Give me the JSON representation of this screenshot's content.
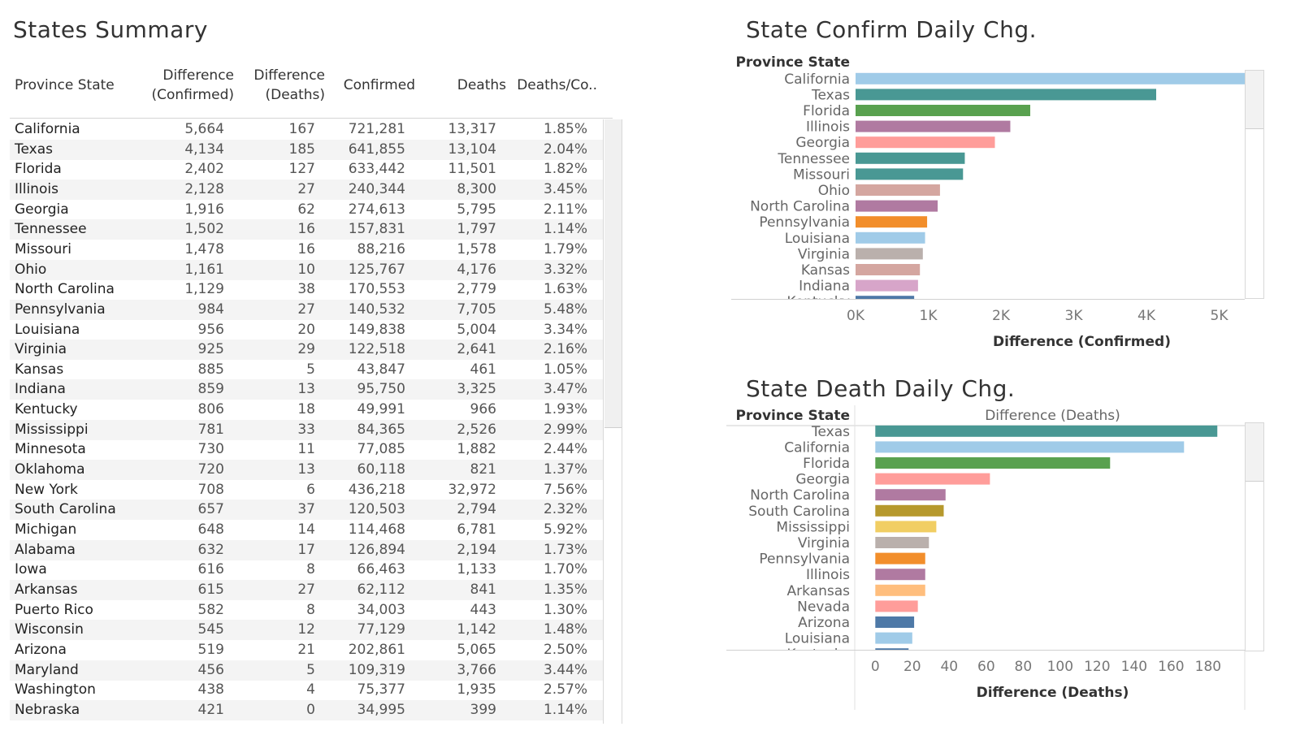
{
  "summary": {
    "title": "States Summary",
    "columns": {
      "state": "Province State",
      "diff_confirmed": [
        "Difference",
        "(Confirmed)"
      ],
      "diff_deaths": [
        "Difference",
        "(Deaths)"
      ],
      "confirmed": "Confirmed",
      "deaths": "Deaths",
      "ratio": "Deaths/Co.."
    },
    "rows": [
      {
        "state": "California",
        "dc": "5,664",
        "dd": "167",
        "c": "721,281",
        "d": "13,317",
        "r": "1.85%"
      },
      {
        "state": "Texas",
        "dc": "4,134",
        "dd": "185",
        "c": "641,855",
        "d": "13,104",
        "r": "2.04%"
      },
      {
        "state": "Florida",
        "dc": "2,402",
        "dd": "127",
        "c": "633,442",
        "d": "11,501",
        "r": "1.82%"
      },
      {
        "state": "Illinois",
        "dc": "2,128",
        "dd": "27",
        "c": "240,344",
        "d": "8,300",
        "r": "3.45%"
      },
      {
        "state": "Georgia",
        "dc": "1,916",
        "dd": "62",
        "c": "274,613",
        "d": "5,795",
        "r": "2.11%"
      },
      {
        "state": "Tennessee",
        "dc": "1,502",
        "dd": "16",
        "c": "157,831",
        "d": "1,797",
        "r": "1.14%"
      },
      {
        "state": "Missouri",
        "dc": "1,478",
        "dd": "16",
        "c": "88,216",
        "d": "1,578",
        "r": "1.79%"
      },
      {
        "state": "Ohio",
        "dc": "1,161",
        "dd": "10",
        "c": "125,767",
        "d": "4,176",
        "r": "3.32%"
      },
      {
        "state": "North Carolina",
        "dc": "1,129",
        "dd": "38",
        "c": "170,553",
        "d": "2,779",
        "r": "1.63%"
      },
      {
        "state": "Pennsylvania",
        "dc": "984",
        "dd": "27",
        "c": "140,532",
        "d": "7,705",
        "r": "5.48%"
      },
      {
        "state": "Louisiana",
        "dc": "956",
        "dd": "20",
        "c": "149,838",
        "d": "5,004",
        "r": "3.34%"
      },
      {
        "state": "Virginia",
        "dc": "925",
        "dd": "29",
        "c": "122,518",
        "d": "2,641",
        "r": "2.16%"
      },
      {
        "state": "Kansas",
        "dc": "885",
        "dd": "5",
        "c": "43,847",
        "d": "461",
        "r": "1.05%"
      },
      {
        "state": "Indiana",
        "dc": "859",
        "dd": "13",
        "c": "95,750",
        "d": "3,325",
        "r": "3.47%"
      },
      {
        "state": "Kentucky",
        "dc": "806",
        "dd": "18",
        "c": "49,991",
        "d": "966",
        "r": "1.93%"
      },
      {
        "state": "Mississippi",
        "dc": "781",
        "dd": "33",
        "c": "84,365",
        "d": "2,526",
        "r": "2.99%"
      },
      {
        "state": "Minnesota",
        "dc": "730",
        "dd": "11",
        "c": "77,085",
        "d": "1,882",
        "r": "2.44%"
      },
      {
        "state": "Oklahoma",
        "dc": "720",
        "dd": "13",
        "c": "60,118",
        "d": "821",
        "r": "1.37%"
      },
      {
        "state": "New York",
        "dc": "708",
        "dd": "6",
        "c": "436,218",
        "d": "32,972",
        "r": "7.56%"
      },
      {
        "state": "South Carolina",
        "dc": "657",
        "dd": "37",
        "c": "120,503",
        "d": "2,794",
        "r": "2.32%"
      },
      {
        "state": "Michigan",
        "dc": "648",
        "dd": "14",
        "c": "114,468",
        "d": "6,781",
        "r": "5.92%"
      },
      {
        "state": "Alabama",
        "dc": "632",
        "dd": "17",
        "c": "126,894",
        "d": "2,194",
        "r": "1.73%"
      },
      {
        "state": "Iowa",
        "dc": "616",
        "dd": "8",
        "c": "66,463",
        "d": "1,133",
        "r": "1.70%"
      },
      {
        "state": "Arkansas",
        "dc": "615",
        "dd": "27",
        "c": "62,112",
        "d": "841",
        "r": "1.35%"
      },
      {
        "state": "Puerto Rico",
        "dc": "582",
        "dd": "8",
        "c": "34,003",
        "d": "443",
        "r": "1.30%"
      },
      {
        "state": "Wisconsin",
        "dc": "545",
        "dd": "12",
        "c": "77,129",
        "d": "1,142",
        "r": "1.48%"
      },
      {
        "state": "Arizona",
        "dc": "519",
        "dd": "21",
        "c": "202,861",
        "d": "5,065",
        "r": "2.50%"
      },
      {
        "state": "Maryland",
        "dc": "456",
        "dd": "5",
        "c": "109,319",
        "d": "3,766",
        "r": "3.44%"
      },
      {
        "state": "Washington",
        "dc": "438",
        "dd": "4",
        "c": "75,377",
        "d": "1,935",
        "r": "2.57%"
      },
      {
        "state": "Nebraska",
        "dc": "421",
        "dd": "0",
        "c": "34,995",
        "d": "399",
        "r": "1.14%"
      }
    ]
  },
  "chart_data": [
    {
      "type": "bar",
      "orientation": "horizontal",
      "title": "State Confirm Daily Chg.",
      "ylabel": "Province State",
      "xlabel": "Difference (Confirmed)",
      "xlim": [
        0,
        6000
      ],
      "x_ticks": [
        "0K",
        "1K",
        "2K",
        "3K",
        "4K",
        "5K"
      ],
      "x_tick_values": [
        0,
        1000,
        2000,
        3000,
        4000,
        5000
      ],
      "grid": false,
      "categories": [
        "California",
        "Texas",
        "Florida",
        "Illinois",
        "Georgia",
        "Tennessee",
        "Missouri",
        "Ohio",
        "North Carolina",
        "Pennsylvania",
        "Louisiana",
        "Virginia",
        "Kansas",
        "Indiana",
        "Kentucky"
      ],
      "values": [
        5664,
        4134,
        2402,
        2128,
        1916,
        1502,
        1478,
        1161,
        1129,
        984,
        956,
        925,
        885,
        859,
        806
      ],
      "colors": [
        "#a0cbe8",
        "#499894",
        "#59a14f",
        "#b07aa1",
        "#ff9d9a",
        "#499894",
        "#499894",
        "#d4a6a0",
        "#b07aa1",
        "#f28e2b",
        "#a0cbe8",
        "#bab0ac",
        "#d4a6a0",
        "#d7a5c9",
        "#4e79a7"
      ]
    },
    {
      "type": "bar",
      "orientation": "horizontal",
      "title": "State Death Daily Chg.",
      "ylabel": "Province State",
      "column_header": "Difference (Deaths)",
      "xlabel": "Difference (Deaths)",
      "xlim": [
        -12,
        195
      ],
      "x_ticks": [
        "0",
        "20",
        "40",
        "60",
        "80",
        "100",
        "120",
        "140",
        "160",
        "180"
      ],
      "x_tick_values": [
        0,
        20,
        40,
        60,
        80,
        100,
        120,
        140,
        160,
        180
      ],
      "grid": false,
      "categories": [
        "Texas",
        "California",
        "Florida",
        "Georgia",
        "North Carolina",
        "South Carolina",
        "Mississippi",
        "Virginia",
        "Pennsylvania",
        "Illinois",
        "Arkansas",
        "Nevada",
        "Arizona",
        "Louisiana",
        "Kentucky"
      ],
      "values": [
        185,
        167,
        127,
        62,
        38,
        37,
        33,
        29,
        27,
        27,
        27,
        23,
        21,
        20,
        18
      ],
      "colors": [
        "#499894",
        "#a0cbe8",
        "#59a14f",
        "#ff9d9a",
        "#b07aa1",
        "#b6992d",
        "#f1ce63",
        "#bab0ac",
        "#f28e2b",
        "#b07aa1",
        "#ffbe7d",
        "#ff9d9a",
        "#4e79a7",
        "#a0cbe8",
        "#4e79a7"
      ]
    }
  ]
}
